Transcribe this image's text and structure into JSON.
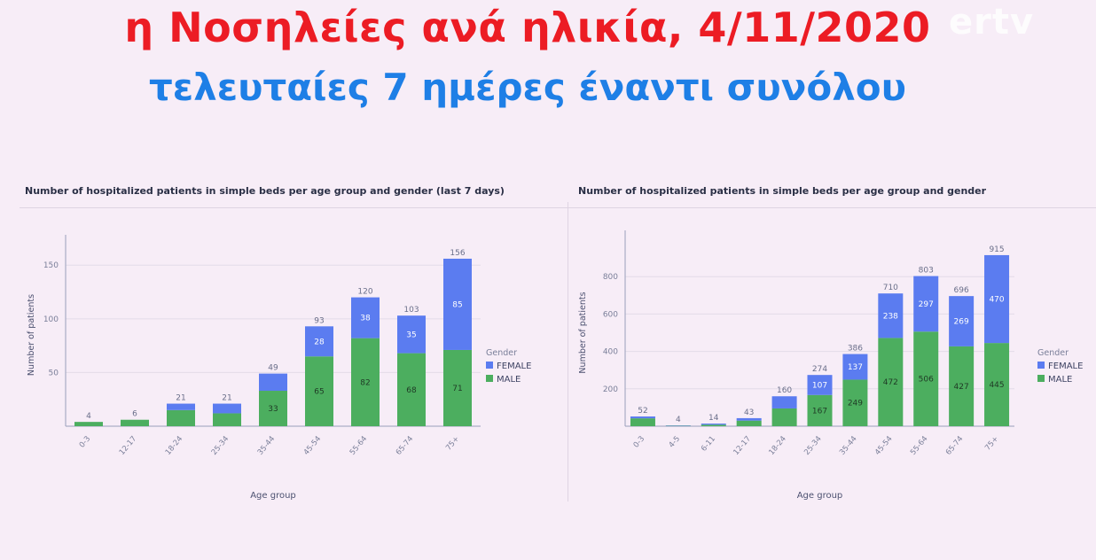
{
  "header": {
    "title": "η Νοσηλείες ανά ηλικία, 4/11/2020",
    "subtitle": "τελευταίες 7 ημέρες έναντι συνόλου",
    "logo": "ertv"
  },
  "colors": {
    "female": "#5b7cf0",
    "male": "#4cae5f",
    "title_red": "#ec1c24",
    "subtitle_blue": "#1e7fe6"
  },
  "chart_data": [
    {
      "type": "bar",
      "stacked": true,
      "title": "Number of hospitalized patients in simple beds per age group and gender (last 7 days)",
      "xlabel": "Age group",
      "ylabel": "Number of patients",
      "ylim": [
        0,
        170
      ],
      "yticks": [
        50,
        100,
        150
      ],
      "grid": true,
      "legend": {
        "title": "Gender",
        "position": "right"
      },
      "categories": [
        "0-3",
        "12-17",
        "18-24",
        "25-34",
        "35-44",
        "45-54",
        "55-64",
        "65-74",
        "75+"
      ],
      "totals": [
        4,
        6,
        21,
        21,
        49,
        93,
        120,
        103,
        156
      ],
      "series": [
        {
          "name": "MALE",
          "values": [
            4,
            6,
            15,
            12,
            33,
            65,
            82,
            68,
            71
          ],
          "labels": [
            "",
            "",
            "",
            "",
            "33",
            "65",
            "82",
            "68",
            "71"
          ]
        },
        {
          "name": "FEMALE",
          "values": [
            0,
            0,
            6,
            9,
            16,
            28,
            38,
            35,
            85
          ],
          "labels": [
            "",
            "",
            "",
            "",
            "",
            "28",
            "38",
            "35",
            "85"
          ]
        }
      ]
    },
    {
      "type": "bar",
      "stacked": true,
      "title": "Number of hospitalized patients in simple beds per age group and gender",
      "xlabel": "Age group",
      "ylabel": "Number of patients",
      "ylim": [
        0,
        1000
      ],
      "yticks": [
        200,
        400,
        600,
        800
      ],
      "grid": true,
      "legend": {
        "title": "Gender",
        "position": "right"
      },
      "categories": [
        "0-3",
        "4-5",
        "6-11",
        "12-17",
        "18-24",
        "25-34",
        "35-44",
        "45-54",
        "55-64",
        "65-74",
        "75+"
      ],
      "totals": [
        52,
        4,
        14,
        43,
        160,
        274,
        386,
        710,
        803,
        696,
        915
      ],
      "series": [
        {
          "name": "MALE",
          "values": [
            42,
            2,
            8,
            30,
            95,
            167,
            249,
            472,
            506,
            427,
            445
          ],
          "labels": [
            "",
            "",
            "",
            "",
            "",
            "167",
            "249",
            "472",
            "506",
            "427",
            "445"
          ]
        },
        {
          "name": "FEMALE",
          "values": [
            10,
            2,
            6,
            13,
            65,
            107,
            137,
            238,
            297,
            269,
            470
          ],
          "labels": [
            "",
            "",
            "",
            "",
            "",
            "107",
            "137",
            "238",
            "297",
            "269",
            "470"
          ]
        }
      ]
    }
  ]
}
